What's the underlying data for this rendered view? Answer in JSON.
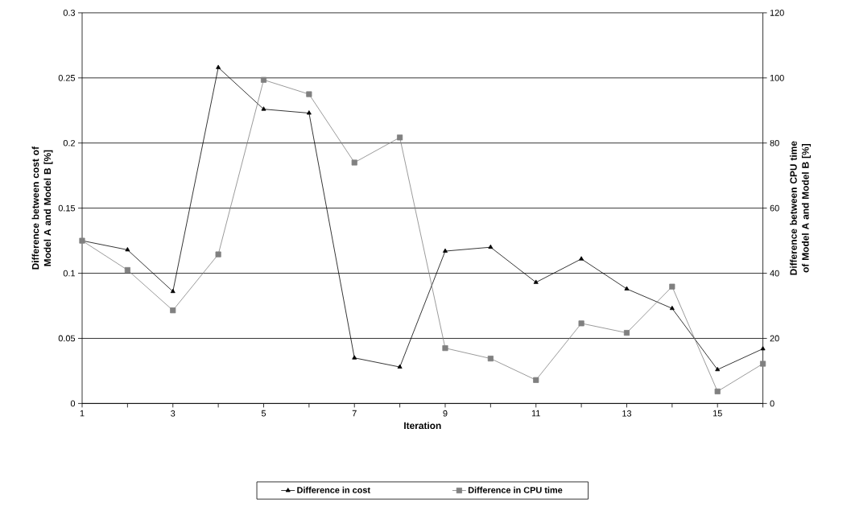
{
  "chart_data": {
    "type": "line",
    "xlabel": "Iteration",
    "ylabel": "Difference between cost of Model A and Model B [%]",
    "y2label": "Difference between CPU time of Model A and Model B [%]",
    "x": [
      1,
      2,
      3,
      4,
      5,
      6,
      7,
      8,
      9,
      10,
      11,
      12,
      13,
      14,
      15,
      16
    ],
    "series": [
      {
        "name": "Difference in cost",
        "color": "#000000",
        "marker": "triangle",
        "values": [
          0.125,
          0.118,
          0.086,
          0.258,
          0.226,
          0.223,
          0.035,
          0.028,
          0.117,
          0.12,
          0.093,
          0.111,
          0.088,
          0.073,
          0.026,
          0.042
        ]
      },
      {
        "name": "Difference in CPU time",
        "color": "#808080",
        "marker": "square",
        "axis": "y2",
        "values": [
          50,
          41,
          28.6,
          45.8,
          99.4,
          95,
          74,
          81.7,
          17,
          13.8,
          7.2,
          24.6,
          21.7,
          35.9,
          3.7,
          12.2
        ]
      }
    ],
    "xlim": [
      1,
      16
    ],
    "xticks": [
      1,
      {
        "value": 2,
        "label": null
      },
      3,
      {
        "value": 4,
        "label": null
      },
      5,
      {
        "value": 6,
        "label": null
      },
      7,
      {
        "value": 8,
        "label": null
      },
      9,
      {
        "value": 10,
        "label": null
      },
      11,
      {
        "value": 12,
        "label": null
      },
      13,
      {
        "value": 14,
        "label": null
      },
      15,
      {
        "value": 16,
        "label": null
      }
    ],
    "ylim": [
      0,
      0.3
    ],
    "yticks": [
      0,
      0.05,
      0.1,
      0.15,
      0.2,
      0.25,
      0.3
    ],
    "y2lim": [
      0,
      120
    ],
    "y2ticks": [
      0,
      20,
      40,
      60,
      80,
      100,
      120
    ],
    "grid": "y",
    "legend": "bottom",
    "line_style": "solid"
  }
}
